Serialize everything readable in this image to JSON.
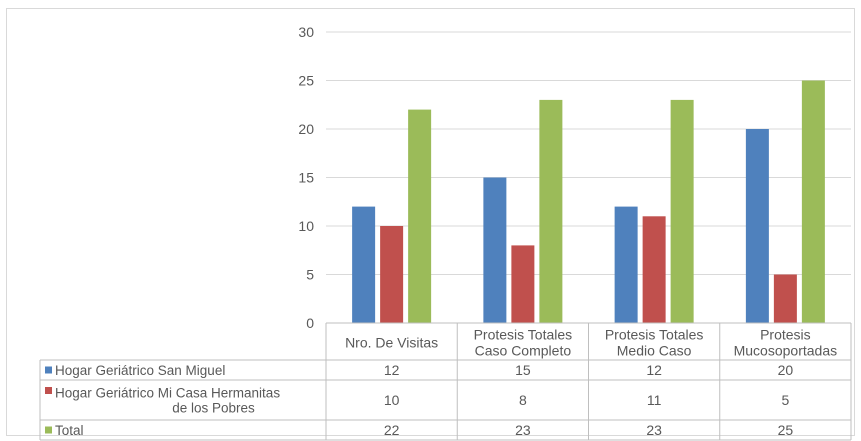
{
  "chart_data": {
    "type": "bar",
    "title": "",
    "xlabel": "",
    "ylabel": "",
    "ylim": [
      0,
      30
    ],
    "yticks": [
      0,
      5,
      10,
      15,
      20,
      25,
      30
    ],
    "grid": true,
    "legend": "data-table",
    "categories": [
      [
        "Nro. De Visitas"
      ],
      [
        "Protesis Totales",
        "Caso Completo"
      ],
      [
        "Protesis Totales",
        "Medio Caso"
      ],
      [
        "Protesis",
        "Mucosoportadas"
      ]
    ],
    "series": [
      {
        "name": [
          "Hogar Geriátrico San Miguel"
        ],
        "color": "#4f81bd",
        "values": [
          12,
          15,
          12,
          20
        ]
      },
      {
        "name": [
          "Hogar Geriátrico Mi Casa Hermanitas",
          "de los Pobres"
        ],
        "color": "#c0504d",
        "values": [
          10,
          8,
          11,
          5
        ]
      },
      {
        "name": [
          "Total"
        ],
        "color": "#9bbb59",
        "values": [
          22,
          23,
          23,
          25
        ]
      }
    ]
  }
}
